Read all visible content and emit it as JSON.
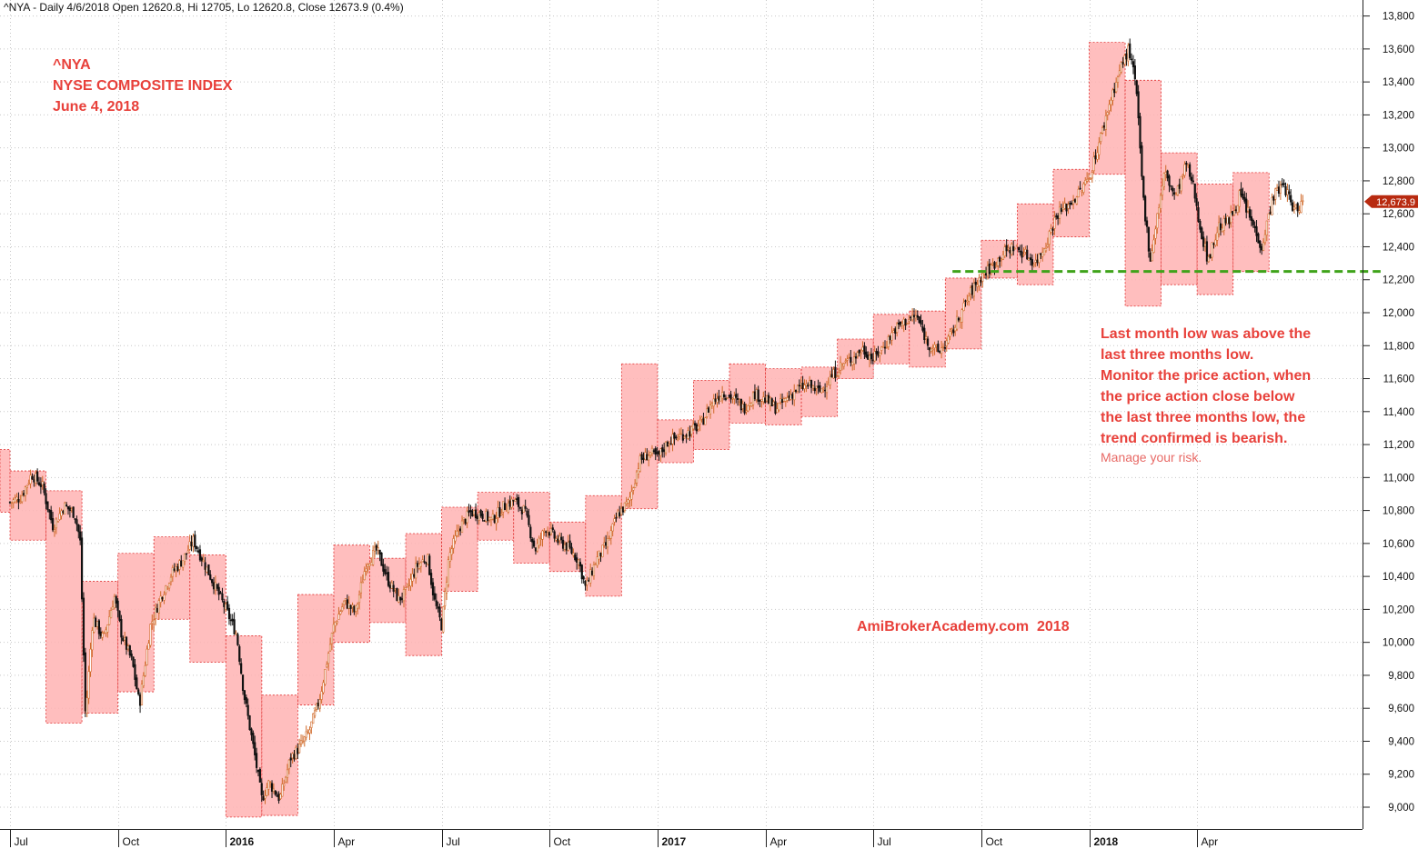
{
  "header": {
    "text": "^NYA - Daily 4/6/2018 Open 12620.8, Hi 12705, Lo 12620.8, Close 12673.9 (0.4%)"
  },
  "title_block": {
    "symbol": "^NYA",
    "name": "NYSE COMPOSITE INDEX",
    "date": "June 4, 2018"
  },
  "annotation": {
    "lines": [
      "Last month low was above the",
      "last three months low.",
      "Monitor the price action, when",
      "the price action close below",
      "the last three months low, the",
      "trend confirmed is bearish."
    ],
    "risk": "Manage your risk."
  },
  "watermark": "AmiBrokerAcademy.com  2018",
  "colors": {
    "box_fill": "#ffb3b3",
    "box_edge": "#e03030",
    "support_line": "#3fa31a",
    "text_red": "#e8403a",
    "price_tag": "#b82a10"
  },
  "chart_data": {
    "type": "candlestick",
    "ylim": [
      8850,
      13850
    ],
    "y_ticks": [
      9000,
      9200,
      9400,
      9600,
      9800,
      10000,
      10200,
      10400,
      10600,
      10800,
      11000,
      11200,
      11400,
      11600,
      11800,
      12000,
      12200,
      12400,
      12600,
      12800,
      13000,
      13200,
      13400,
      13600,
      13800
    ],
    "y_tick_labels": [
      "9,000",
      "9,200",
      "9,400",
      "9,600",
      "9,800",
      "10,000",
      "10,200",
      "10,400",
      "10,600",
      "10,800",
      "11,000",
      "11,200",
      "11,400",
      "11,600",
      "11,800",
      "12,000",
      "12,200",
      "12,400",
      "12,600",
      "12,800",
      "13,000",
      "13,200",
      "13,400",
      "13,600",
      "13,800"
    ],
    "x_labels": [
      {
        "label": "Jul",
        "month": 0,
        "bold": false
      },
      {
        "label": "Oct",
        "month": 3,
        "bold": false
      },
      {
        "label": "2016",
        "month": 6,
        "bold": true
      },
      {
        "label": "Apr",
        "month": 9,
        "bold": false
      },
      {
        "label": "Jul",
        "month": 12,
        "bold": false
      },
      {
        "label": "Oct",
        "month": 15,
        "bold": false
      },
      {
        "label": "2017",
        "month": 18,
        "bold": true
      },
      {
        "label": "Apr",
        "month": 21,
        "bold": false
      },
      {
        "label": "Jul",
        "month": 24,
        "bold": false
      },
      {
        "label": "Oct",
        "month": 27,
        "bold": false
      },
      {
        "label": "2018",
        "month": 30,
        "bold": true
      },
      {
        "label": "Apr",
        "month": 33,
        "bold": false
      }
    ],
    "monthly": [
      {
        "m": "Jun 2015",
        "high": 11170,
        "low": 10790
      },
      {
        "m": "Jul 2015",
        "high": 11040,
        "low": 10620
      },
      {
        "m": "Aug 2015",
        "high": 10920,
        "low": 9510
      },
      {
        "m": "Sep 2015",
        "high": 10370,
        "low": 9570
      },
      {
        "m": "Oct 2015",
        "high": 10540,
        "low": 9700
      },
      {
        "m": "Nov 2015",
        "high": 10640,
        "low": 10140
      },
      {
        "m": "Dec 2015",
        "high": 10530,
        "low": 9880
      },
      {
        "m": "Jan 2016",
        "high": 10040,
        "low": 8940
      },
      {
        "m": "Feb 2016",
        "high": 9680,
        "low": 8950
      },
      {
        "m": "Mar 2016",
        "high": 10290,
        "low": 9620
      },
      {
        "m": "Apr 2016",
        "high": 10590,
        "low": 10000
      },
      {
        "m": "May 2016",
        "high": 10510,
        "low": 10120
      },
      {
        "m": "Jun 2016",
        "high": 10660,
        "low": 9920
      },
      {
        "m": "Jul 2016",
        "high": 10820,
        "low": 10310
      },
      {
        "m": "Aug 2016",
        "high": 10910,
        "low": 10620
      },
      {
        "m": "Sep 2016",
        "high": 10910,
        "low": 10480
      },
      {
        "m": "Oct 2016",
        "high": 10730,
        "low": 10430
      },
      {
        "m": "Nov 2016",
        "high": 10890,
        "low": 10280
      },
      {
        "m": "Dec 2016",
        "high": 11690,
        "low": 10810
      },
      {
        "m": "Jan 2017",
        "high": 11350,
        "low": 11090
      },
      {
        "m": "Feb 2017",
        "high": 11590,
        "low": 11170
      },
      {
        "m": "Mar 2017",
        "high": 11690,
        "low": 11330
      },
      {
        "m": "Apr 2017",
        "high": 11660,
        "low": 11320
      },
      {
        "m": "May 2017",
        "high": 11670,
        "low": 11370
      },
      {
        "m": "Jun 2017",
        "high": 11840,
        "low": 11600
      },
      {
        "m": "Jul 2017",
        "high": 11990,
        "low": 11690
      },
      {
        "m": "Aug 2017",
        "high": 12010,
        "low": 11670
      },
      {
        "m": "Sep 2017",
        "high": 12210,
        "low": 11780
      },
      {
        "m": "Oct 2017",
        "high": 12440,
        "low": 12210
      },
      {
        "m": "Nov 2017",
        "high": 12660,
        "low": 12170
      },
      {
        "m": "Dec 2017",
        "high": 12870,
        "low": 12460
      },
      {
        "m": "Jan 2018",
        "high": 13640,
        "low": 12840
      },
      {
        "m": "Feb 2018",
        "high": 13410,
        "low": 12040
      },
      {
        "m": "Mar 2018",
        "high": 12970,
        "low": 12170
      },
      {
        "m": "Apr 2018",
        "high": 12780,
        "low": 12110
      },
      {
        "m": "May 2018",
        "high": 12850,
        "low": 12250
      }
    ],
    "price_path": [
      [
        0,
        10850
      ],
      [
        0.3,
        10880
      ],
      [
        0.6,
        11020
      ],
      [
        0.9,
        10950
      ],
      [
        1.0,
        10860
      ],
      [
        1.2,
        10700
      ],
      [
        1.5,
        10830
      ],
      [
        1.8,
        10780
      ],
      [
        1.95,
        10620
      ],
      [
        2.1,
        9540
      ],
      [
        2.3,
        10150
      ],
      [
        2.6,
        10020
      ],
      [
        2.9,
        10280
      ],
      [
        3.1,
        10050
      ],
      [
        3.4,
        9880
      ],
      [
        3.6,
        9620
      ],
      [
        3.9,
        10100
      ],
      [
        4.2,
        10280
      ],
      [
        4.5,
        10420
      ],
      [
        4.8,
        10500
      ],
      [
        5.1,
        10620
      ],
      [
        5.4,
        10480
      ],
      [
        5.7,
        10340
      ],
      [
        6.0,
        10200
      ],
      [
        6.3,
        10050
      ],
      [
        6.5,
        9690
      ],
      [
        6.8,
        9320
      ],
      [
        7.0,
        9050
      ],
      [
        7.2,
        9150
      ],
      [
        7.5,
        9050
      ],
      [
        7.8,
        9300
      ],
      [
        8.0,
        9350
      ],
      [
        8.3,
        9450
      ],
      [
        8.6,
        9650
      ],
      [
        9.0,
        10100
      ],
      [
        9.3,
        10250
      ],
      [
        9.6,
        10180
      ],
      [
        9.9,
        10480
      ],
      [
        10.2,
        10560
      ],
      [
        10.5,
        10380
      ],
      [
        10.8,
        10260
      ],
      [
        11.0,
        10300
      ],
      [
        11.3,
        10460
      ],
      [
        11.6,
        10520
      ],
      [
        11.8,
        10250
      ],
      [
        12.0,
        10100
      ],
      [
        12.2,
        10520
      ],
      [
        12.5,
        10700
      ],
      [
        12.8,
        10790
      ],
      [
        13.1,
        10780
      ],
      [
        13.4,
        10740
      ],
      [
        13.7,
        10820
      ],
      [
        14.0,
        10860
      ],
      [
        14.3,
        10800
      ],
      [
        14.6,
        10560
      ],
      [
        14.9,
        10700
      ],
      [
        15.2,
        10620
      ],
      [
        15.5,
        10580
      ],
      [
        15.8,
        10500
      ],
      [
        16.0,
        10330
      ],
      [
        16.3,
        10500
      ],
      [
        16.6,
        10600
      ],
      [
        16.9,
        10780
      ],
      [
        17.2,
        10850
      ],
      [
        17.5,
        11100
      ],
      [
        17.8,
        11150
      ],
      [
        18.0,
        11120
      ],
      [
        18.3,
        11220
      ],
      [
        18.6,
        11250
      ],
      [
        18.9,
        11280
      ],
      [
        19.2,
        11320
      ],
      [
        19.5,
        11450
      ],
      [
        19.8,
        11520
      ],
      [
        20.1,
        11480
      ],
      [
        20.4,
        11420
      ],
      [
        20.7,
        11510
      ],
      [
        21.0,
        11470
      ],
      [
        21.3,
        11420
      ],
      [
        21.6,
        11480
      ],
      [
        21.9,
        11540
      ],
      [
        22.2,
        11560
      ],
      [
        22.5,
        11520
      ],
      [
        22.8,
        11600
      ],
      [
        23.1,
        11680
      ],
      [
        23.4,
        11720
      ],
      [
        23.7,
        11780
      ],
      [
        24.0,
        11720
      ],
      [
        24.3,
        11800
      ],
      [
        24.6,
        11900
      ],
      [
        24.9,
        11950
      ],
      [
        25.2,
        11980
      ],
      [
        25.5,
        11820
      ],
      [
        25.8,
        11760
      ],
      [
        26.1,
        11840
      ],
      [
        26.4,
        11980
      ],
      [
        26.7,
        12120
      ],
      [
        27.0,
        12220
      ],
      [
        27.3,
        12280
      ],
      [
        27.6,
        12360
      ],
      [
        27.9,
        12400
      ],
      [
        28.2,
        12360
      ],
      [
        28.5,
        12300
      ],
      [
        28.8,
        12420
      ],
      [
        29.1,
        12600
      ],
      [
        29.4,
        12650
      ],
      [
        29.7,
        12720
      ],
      [
        30.0,
        12820
      ],
      [
        30.3,
        13050
      ],
      [
        30.6,
        13300
      ],
      [
        30.9,
        13500
      ],
      [
        31.1,
        13600
      ],
      [
        31.3,
        13380
      ],
      [
        31.5,
        12700
      ],
      [
        31.7,
        12320
      ],
      [
        31.9,
        12600
      ],
      [
        32.1,
        12850
      ],
      [
        32.4,
        12700
      ],
      [
        32.7,
        12900
      ],
      [
        32.9,
        12760
      ],
      [
        33.1,
        12500
      ],
      [
        33.3,
        12320
      ],
      [
        33.6,
        12520
      ],
      [
        33.9,
        12560
      ],
      [
        34.2,
        12720
      ],
      [
        34.5,
        12560
      ],
      [
        34.8,
        12400
      ],
      [
        35.1,
        12700
      ],
      [
        35.4,
        12780
      ],
      [
        35.7,
        12620
      ],
      [
        35.95,
        12674
      ]
    ],
    "support_line": {
      "value": 12250,
      "from_month": 26.2,
      "to_month": 38.1
    },
    "last_close": {
      "value": 12673.9,
      "label": "12,673.9"
    }
  }
}
